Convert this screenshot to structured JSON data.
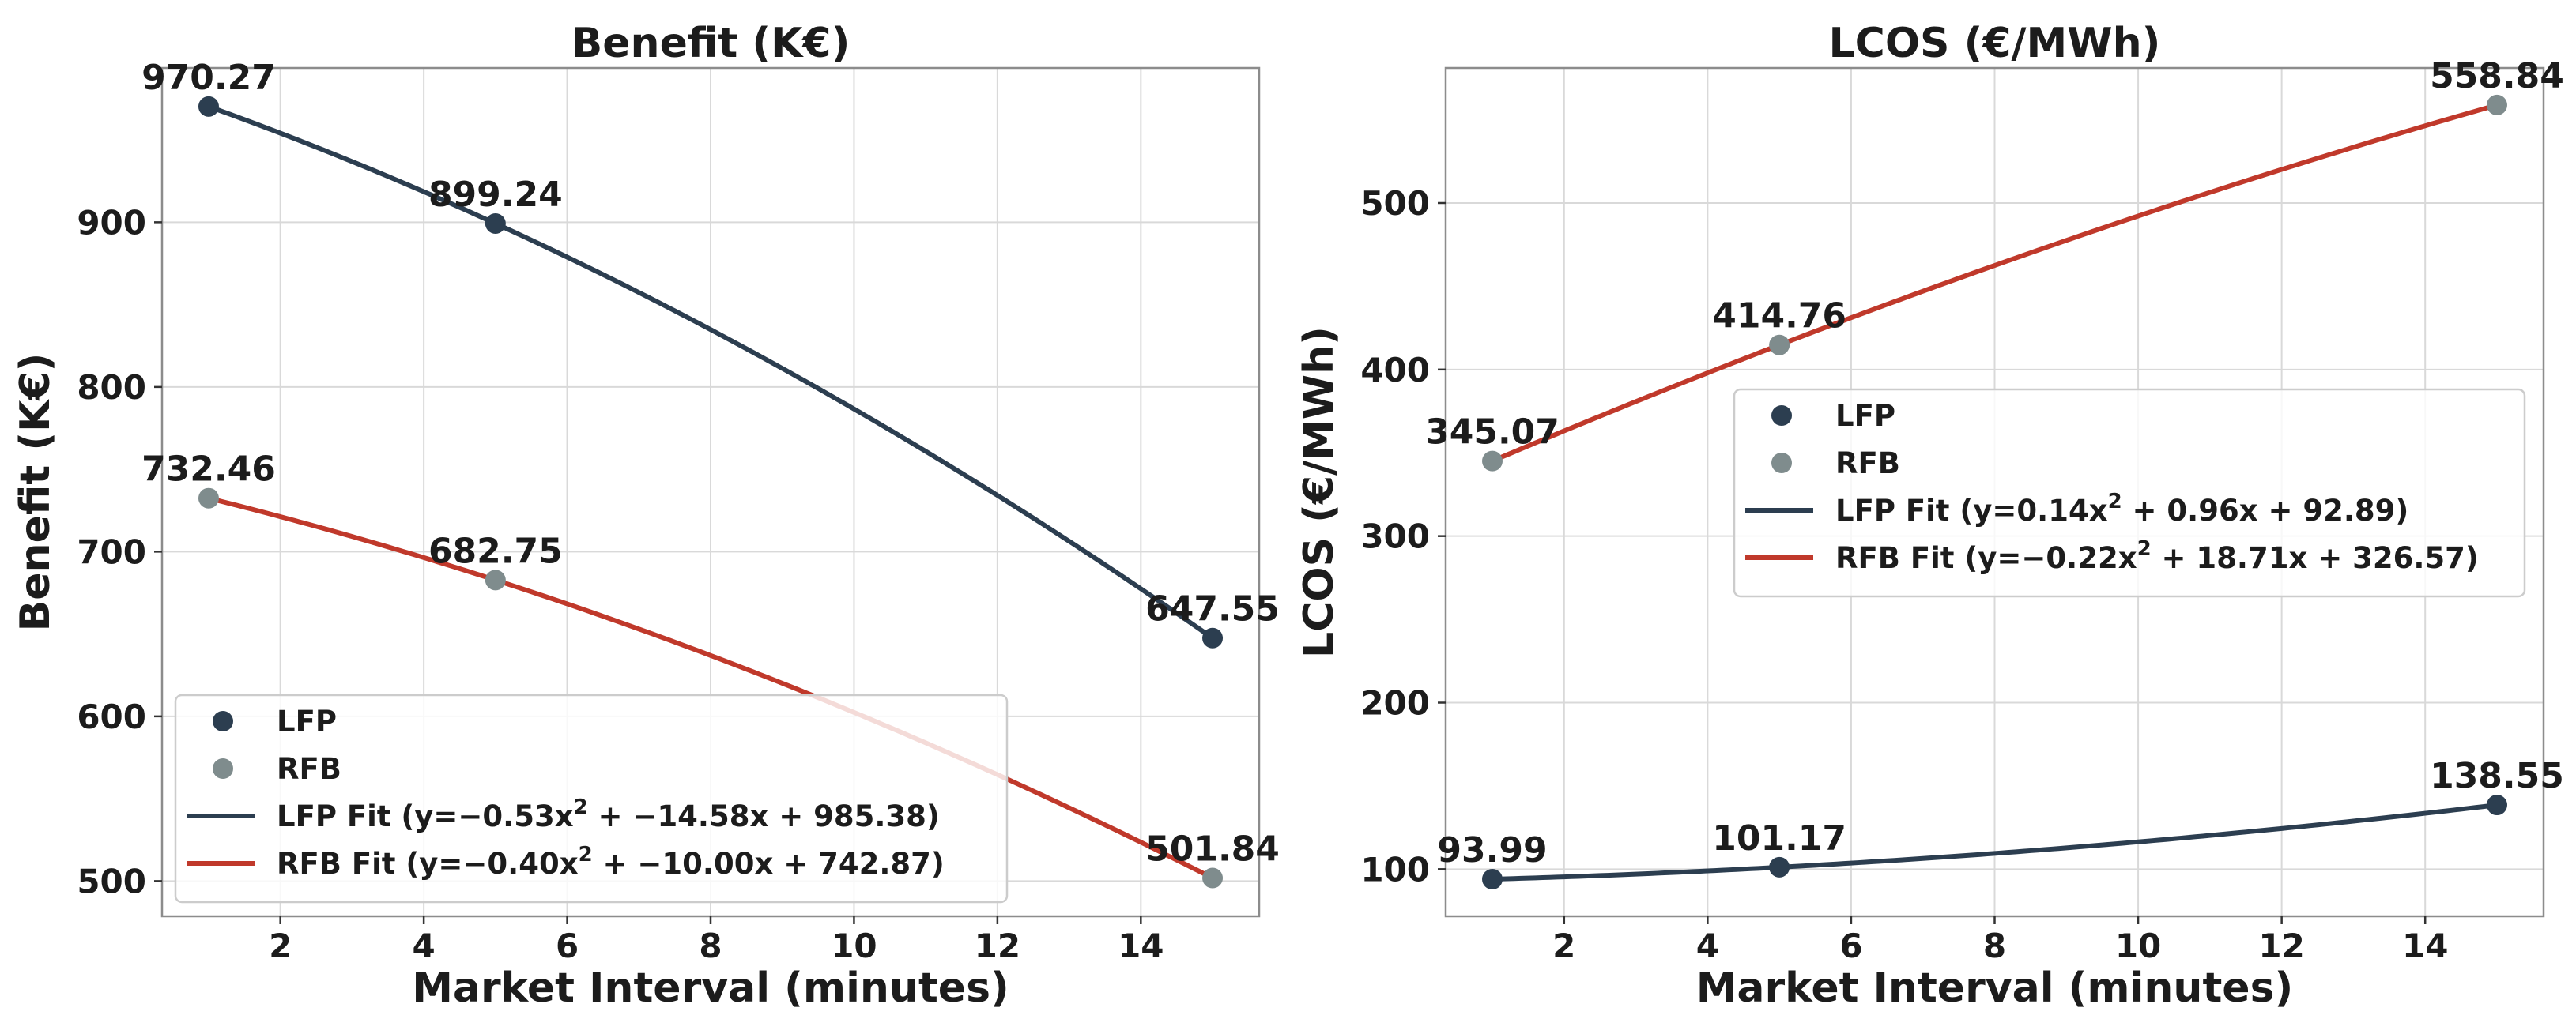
{
  "colors": {
    "lfp": "#2c3e50",
    "rfb_point": "#7f8c8d",
    "rfb_line": "#c0392b"
  },
  "chart_data": [
    {
      "type": "line",
      "title": "Benefit (K€)",
      "xlabel": "Market Interval (minutes)",
      "ylabel": "Benefit (K€)",
      "xlim": [
        0.35,
        15.65
      ],
      "ylim": [
        478.6,
        993.7
      ],
      "xticks": [
        2,
        4,
        6,
        8,
        10,
        12,
        14
      ],
      "yticks": [
        500,
        600,
        700,
        800,
        900
      ],
      "grid": true,
      "legend_position": "bottom-left",
      "x": [
        1,
        5,
        15
      ],
      "series": [
        {
          "name": "LFP",
          "kind": "points",
          "color_key": "lfp",
          "values": [
            970.27,
            899.24,
            647.55
          ],
          "labels": [
            "970.27",
            "899.24",
            "647.55"
          ]
        },
        {
          "name": "RFB",
          "kind": "points",
          "color_key": "rfb_point",
          "values": [
            732.46,
            682.75,
            501.84
          ],
          "labels": [
            "732.46",
            "682.75",
            "501.84"
          ]
        },
        {
          "name": "LFP Fit (y=−0.53x² + −14.58x + 985.38)",
          "kind": "fit",
          "color_key": "lfp",
          "fit_points": [
            1,
            970.27,
            5,
            899.24,
            15,
            647.55
          ]
        },
        {
          "name": "RFB Fit (y=−0.40x² + −10.00x + 742.87)",
          "kind": "fit",
          "color_key": "rfb_line",
          "fit_points": [
            1,
            732.46,
            5,
            682.75,
            15,
            501.84
          ]
        }
      ],
      "legend_text": {
        "lfp": "LFP",
        "rfb": "RFB",
        "lfp_fit_prefix": "LFP Fit (y=−0.53x",
        "lfp_fit_suffix": " + −14.58x + 985.38)",
        "rfb_fit_prefix": "RFB Fit (y=−0.40x",
        "rfb_fit_suffix": " + −10.00x + 742.87)",
        "sup": "2"
      }
    },
    {
      "type": "line",
      "title": "LCOS (€/MWh)",
      "xlabel": "Market Interval (minutes)",
      "ylabel": "LCOS (€/MWh)",
      "xlim": [
        0.35,
        15.65
      ],
      "ylim": [
        71.7,
        581.1
      ],
      "xticks": [
        2,
        4,
        6,
        8,
        10,
        12,
        14
      ],
      "yticks": [
        100,
        200,
        300,
        400,
        500
      ],
      "grid": true,
      "legend_position": "center-right",
      "x": [
        1,
        5,
        15
      ],
      "series": [
        {
          "name": "LFP",
          "kind": "points",
          "color_key": "lfp",
          "values": [
            93.99,
            101.17,
            138.55
          ],
          "labels": [
            "93.99",
            "101.17",
            "138.55"
          ]
        },
        {
          "name": "RFB",
          "kind": "points",
          "color_key": "rfb_point",
          "values": [
            345.07,
            414.76,
            558.84
          ],
          "labels": [
            "345.07",
            "414.76",
            "558.84"
          ]
        },
        {
          "name": "LFP Fit (y=0.14x² + 0.96x + 92.89)",
          "kind": "fit",
          "color_key": "lfp",
          "fit_points": [
            1,
            93.99,
            5,
            101.17,
            15,
            138.55
          ]
        },
        {
          "name": "RFB Fit (y=−0.22x² + 18.71x + 326.57)",
          "kind": "fit",
          "color_key": "rfb_line",
          "fit_points": [
            1,
            345.07,
            5,
            414.76,
            15,
            558.84
          ]
        }
      ],
      "legend_text": {
        "lfp": "LFP",
        "rfb": "RFB",
        "lfp_fit_prefix": "LFP Fit (y=0.14x",
        "lfp_fit_suffix": " + 0.96x + 92.89)",
        "rfb_fit_prefix": "RFB Fit (y=−0.22x",
        "rfb_fit_suffix": " + 18.71x + 326.57)",
        "sup": "2"
      }
    }
  ]
}
